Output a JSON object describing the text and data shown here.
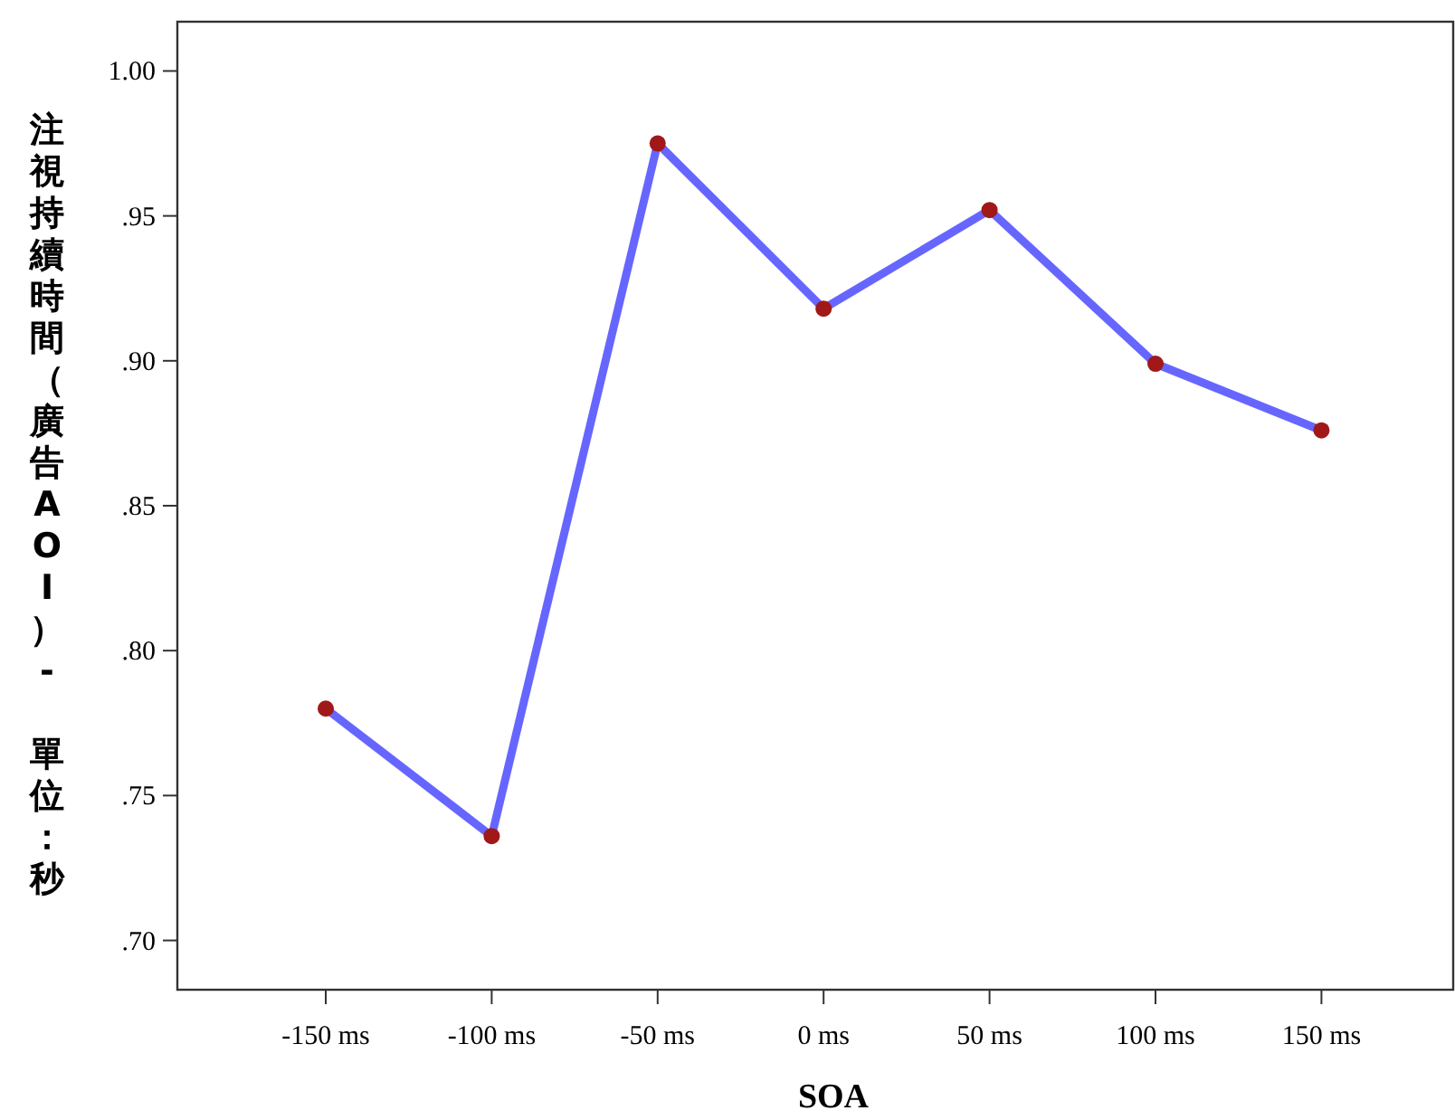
{
  "chart_data": {
    "type": "line",
    "xlabel": "SOA",
    "ylabel": "注視持續時間（廣告AOI）- 單位：秒",
    "categories": [
      "-150 ms",
      "-100 ms",
      "-50 ms",
      "0 ms",
      "50 ms",
      "100 ms",
      "150 ms"
    ],
    "series": [
      {
        "color": "#6666ff",
        "values": [
          0.78,
          0.736,
          0.975,
          0.918,
          0.952,
          0.899,
          0.876
        ]
      }
    ],
    "ylim": [
      0.683,
      1.017
    ],
    "yticks": [
      {
        "value": 0.7,
        "label": ".70"
      },
      {
        "value": 0.75,
        "label": ".75"
      },
      {
        "value": 0.8,
        "label": ".80"
      },
      {
        "value": 0.85,
        "label": ".85"
      },
      {
        "value": 0.9,
        "label": ".90"
      },
      {
        "value": 0.95,
        "label": ".95"
      },
      {
        "value": 1.0,
        "label": "1.00"
      }
    ],
    "marker": "circle",
    "line_style": "solid",
    "grid": false
  }
}
